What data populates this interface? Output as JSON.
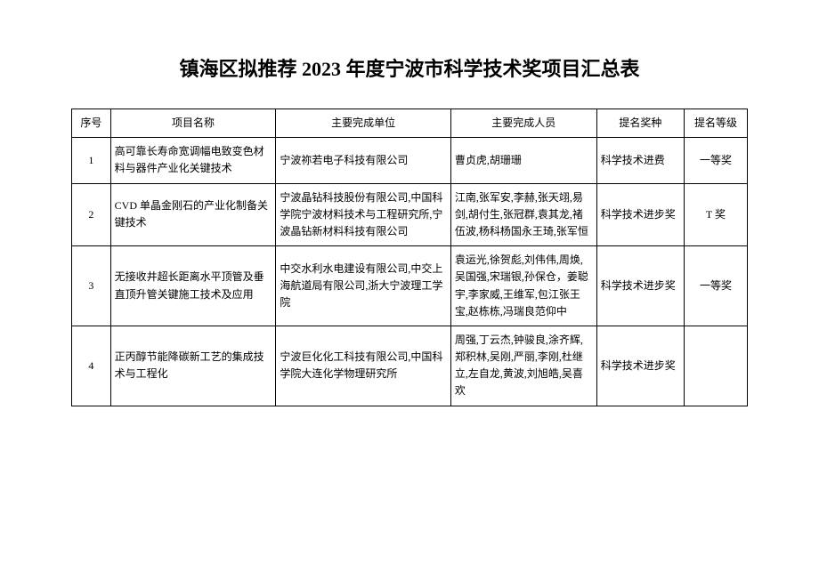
{
  "title": "镇海区拟推荐 2023 年度宁波市科学技术奖项目汇总表",
  "table": {
    "headers": {
      "seq": "序号",
      "name": "项目名称",
      "unit": "主要完成单位",
      "person": "主要完成人员",
      "award": "提名奖种",
      "level": "提名等级"
    },
    "rows": [
      {
        "seq": "1",
        "name": "高可靠长寿命宽调幅电致变色材料与器件产业化关键技术",
        "unit": "宁波祢若电子科技有限公司",
        "person": "曹贞虎,胡珊珊",
        "award": "科学技术进费",
        "level": "一等奖"
      },
      {
        "seq": "2",
        "name": "CVD 单晶金刚石的产业化制备关键技术",
        "unit": "宁波晶钻科技股份有限公司,中国科学院宁波材料技术与工程研究所,宁波晶钻新材料科技有限公司",
        "person": "江南,张军安,李赫,张天翊,易剑,胡付生,张冠群,袁其龙,褚伍波,杨科杨国永王琦,张军恒",
        "award": "科学技术进步奖",
        "level": "T 奖"
      },
      {
        "seq": "3",
        "name": "无接收井超长距离水平顶管及垂直顶升管关键施工技术及应用",
        "unit": "中交水利水电建设有限公司,中交上海航道局有限公司,浙大宁波理工学院",
        "person": "袁运光,徐贺彪,刘伟伟,周焕,吴国强,宋瑞银,孙保仓，姜聪宇,李家威,王维军,包江张王宝,赵栋栋,冯瑞良范仰中",
        "award": "科学技术进步奖",
        "level": "一等奖"
      },
      {
        "seq": "4",
        "name": "正丙醇节能降碳新工艺的集成技术与工程化",
        "unit": "宁波巨化化工科技有限公司,中国科学院大连化学物理研究所",
        "person": "周强,丁云杰,钟骏良,涂齐辉,郑积林,吴刚,严丽,李刚,杜继立,左自龙,黄波,刘旭皓,吴喜欢",
        "award": "科学技术进步奖",
        "level": ""
      }
    ]
  }
}
